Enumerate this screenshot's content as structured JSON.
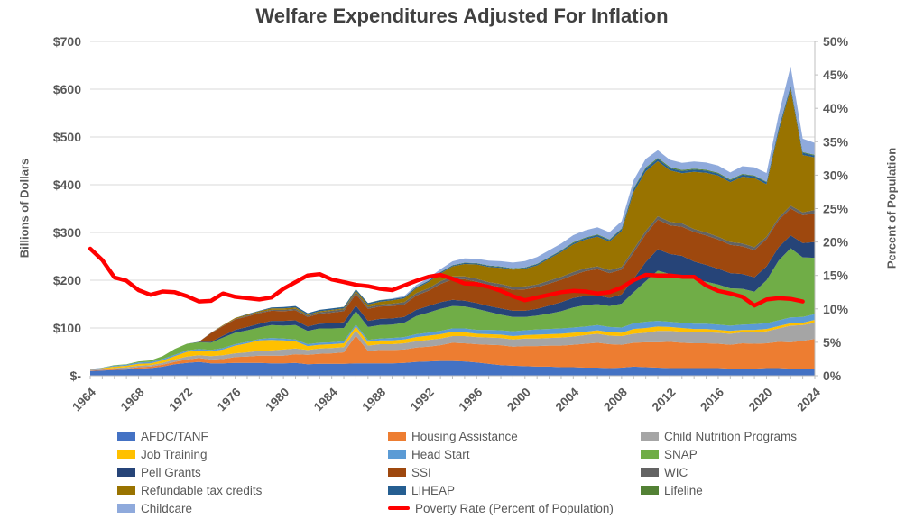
{
  "title": "Welfare Expenditures Adjusted For Inflation",
  "left_axis": {
    "title": "Billions of Dollars",
    "max": 700,
    "step": 100,
    "tick_labels": [
      "$-",
      "$100",
      "$200",
      "$300",
      "$400",
      "$500",
      "$600",
      "$700"
    ]
  },
  "right_axis": {
    "title": "Percent of Population",
    "max": 50,
    "step": 5,
    "tick_labels": [
      "0%",
      "5%",
      "10%",
      "15%",
      "20%",
      "25%",
      "30%",
      "35%",
      "40%",
      "45%",
      "50%"
    ]
  },
  "x_axis": {
    "labels": [
      1964,
      1968,
      1972,
      1976,
      1980,
      1984,
      1988,
      1992,
      1996,
      2000,
      2004,
      2008,
      2012,
      2016,
      2020,
      2024
    ]
  },
  "colors": {
    "grid": "#D9D9D9",
    "axis_line": "#BFBFBF",
    "tick_text": "#595959",
    "title_text": "#404040",
    "poverty_line": "#FF0000"
  },
  "chart_data": {
    "type": "area",
    "stacked": true,
    "grid": true,
    "legend_position": "bottom",
    "x": [
      1964,
      1965,
      1966,
      1967,
      1968,
      1969,
      1970,
      1971,
      1972,
      1973,
      1974,
      1975,
      1976,
      1977,
      1978,
      1979,
      1980,
      1981,
      1982,
      1983,
      1984,
      1985,
      1986,
      1987,
      1988,
      1989,
      1990,
      1991,
      1992,
      1993,
      1994,
      1995,
      1996,
      1997,
      1998,
      1999,
      2000,
      2001,
      2002,
      2003,
      2004,
      2005,
      2006,
      2007,
      2008,
      2009,
      2010,
      2011,
      2012,
      2013,
      2014,
      2015,
      2016,
      2017,
      2018,
      2019,
      2020,
      2021,
      2022,
      2023,
      2024
    ],
    "ylim_left": [
      0,
      700
    ],
    "ylim_right": [
      0,
      50
    ],
    "series": [
      {
        "name": "AFDC/TANF",
        "color": "#4472C4",
        "values": [
          10,
          11,
          12,
          13,
          15,
          16,
          19,
          24,
          27,
          29,
          26,
          26,
          27,
          27,
          27,
          26,
          26,
          27,
          24,
          25,
          25,
          25,
          26,
          26,
          26,
          26,
          27,
          29,
          30,
          31,
          31,
          30,
          28,
          25,
          22,
          21,
          20,
          19,
          19,
          18,
          18,
          17,
          17,
          16,
          17,
          19,
          18,
          17,
          16,
          16,
          16,
          16,
          16,
          15,
          15,
          15,
          16,
          16,
          15,
          15,
          15
        ]
      },
      {
        "name": "Housing Assistance",
        "color": "#ED7D31",
        "values": [
          1,
          1,
          2,
          2,
          3,
          3,
          4,
          5,
          7,
          8,
          8,
          9,
          12,
          13,
          15,
          16,
          16,
          18,
          20,
          21,
          22,
          24,
          58,
          26,
          28,
          28,
          28,
          30,
          31,
          33,
          38,
          38,
          38,
          40,
          42,
          40,
          42,
          43,
          44,
          45,
          47,
          50,
          52,
          50,
          48,
          50,
          52,
          53,
          55,
          53,
          52,
          52,
          51,
          50,
          53,
          52,
          52,
          55,
          55,
          58,
          62
        ]
      },
      {
        "name": "Child Nutrition Programs",
        "color": "#A5A5A5",
        "values": [
          2,
          2,
          2,
          3,
          3,
          3,
          4,
          5,
          6,
          6,
          7,
          8,
          8,
          9,
          10,
          11,
          13,
          12,
          10,
          11,
          11,
          11,
          11,
          11,
          12,
          12,
          13,
          13,
          14,
          14,
          14,
          15,
          15,
          15,
          15,
          15,
          16,
          16,
          16,
          17,
          17,
          18,
          19,
          18,
          18,
          19,
          20,
          24,
          23,
          23,
          23,
          23,
          23,
          23,
          23,
          24,
          25,
          28,
          35,
          33,
          34
        ]
      },
      {
        "name": "Job Training",
        "color": "#FFC000",
        "values": [
          1,
          2,
          3,
          3,
          4,
          4,
          5,
          7,
          10,
          10,
          10,
          12,
          16,
          19,
          22,
          22,
          19,
          15,
          8,
          8,
          8,
          8,
          8,
          8,
          8,
          8,
          8,
          9,
          9,
          9,
          9,
          8,
          7,
          7,
          7,
          7,
          7,
          8,
          8,
          8,
          8,
          7,
          7,
          7,
          7,
          10,
          10,
          9,
          8,
          8,
          7,
          7,
          6,
          6,
          5,
          5,
          5,
          5,
          5,
          5,
          6
        ]
      },
      {
        "name": "Head Start",
        "color": "#5B9BD5",
        "values": [
          0,
          1,
          2,
          2,
          3,
          3,
          3,
          3,
          3,
          3,
          3,
          3,
          3,
          3,
          3,
          4,
          4,
          4,
          4,
          4,
          4,
          4,
          4,
          4,
          4,
          5,
          5,
          6,
          6,
          7,
          7,
          8,
          8,
          9,
          9,
          10,
          10,
          11,
          11,
          11,
          11,
          11,
          11,
          11,
          11,
          12,
          13,
          12,
          11,
          11,
          11,
          11,
          11,
          11,
          11,
          12,
          12,
          12,
          12,
          12,
          12
        ]
      },
      {
        "name": "SNAP",
        "color": "#70AD47",
        "values": [
          0,
          0,
          1,
          1,
          2,
          3,
          6,
          12,
          14,
          14,
          15,
          22,
          24,
          24,
          24,
          27,
          27,
          30,
          28,
          30,
          29,
          28,
          28,
          27,
          28,
          28,
          30,
          38,
          42,
          46,
          47,
          46,
          44,
          38,
          33,
          30,
          28,
          29,
          32,
          36,
          42,
          45,
          44,
          44,
          50,
          65,
          85,
          105,
          100,
          100,
          93,
          88,
          84,
          78,
          75,
          68,
          90,
          125,
          145,
          125,
          118
        ]
      },
      {
        "name": "Pell Grants",
        "color": "#264478",
        "values": [
          0,
          0,
          0,
          0,
          0,
          0,
          0,
          0,
          0,
          1,
          2,
          4,
          6,
          7,
          8,
          9,
          10,
          10,
          9,
          10,
          11,
          12,
          12,
          13,
          13,
          13,
          12,
          13,
          14,
          14,
          13,
          12,
          12,
          12,
          13,
          13,
          13,
          14,
          17,
          19,
          20,
          19,
          18,
          17,
          19,
          28,
          40,
          45,
          42,
          40,
          37,
          35,
          33,
          32,
          31,
          30,
          29,
          28,
          27,
          30,
          33
        ]
      },
      {
        "name": "SSI",
        "color": "#9E480E",
        "values": [
          0,
          0,
          0,
          0,
          0,
          0,
          0,
          0,
          0,
          0,
          18,
          20,
          22,
          22,
          22,
          21,
          20,
          21,
          20,
          21,
          22,
          23,
          24,
          25,
          26,
          26,
          26,
          30,
          32,
          38,
          43,
          45,
          45,
          44,
          45,
          44,
          45,
          45,
          46,
          47,
          48,
          52,
          55,
          52,
          52,
          55,
          58,
          62,
          60,
          61,
          62,
          62,
          61,
          59,
          58,
          57,
          57,
          57,
          56,
          58,
          60
        ]
      },
      {
        "name": "WIC",
        "color": "#636363",
        "values": [
          0,
          0,
          0,
          0,
          0,
          0,
          0,
          0,
          0,
          0,
          1,
          1,
          1,
          2,
          2,
          2,
          3,
          3,
          3,
          3,
          4,
          4,
          4,
          4,
          4,
          5,
          5,
          5,
          5,
          6,
          6,
          6,
          6,
          6,
          6,
          6,
          6,
          6,
          6,
          6,
          6,
          6,
          6,
          6,
          6,
          7,
          7,
          7,
          7,
          7,
          6,
          6,
          6,
          6,
          6,
          6,
          5,
          5,
          6,
          6,
          7
        ]
      },
      {
        "name": "Refundable tax credits",
        "color": "#997300",
        "values": [
          0,
          0,
          0,
          0,
          0,
          0,
          0,
          0,
          0,
          0,
          0,
          1,
          2,
          2,
          2,
          3,
          3,
          3,
          2,
          2,
          2,
          2,
          3,
          5,
          6,
          7,
          8,
          10,
          13,
          16,
          21,
          26,
          30,
          32,
          34,
          36,
          37,
          40,
          46,
          52,
          58,
          60,
          62,
          60,
          75,
          120,
          125,
          115,
          108,
          105,
          120,
          125,
          128,
          125,
          140,
          145,
          110,
          180,
          245,
          120,
          110
        ]
      },
      {
        "name": "LIHEAP",
        "color": "#255E91",
        "values": [
          0,
          0,
          0,
          0,
          0,
          0,
          0,
          0,
          0,
          0,
          0,
          0,
          0,
          1,
          1,
          2,
          3,
          3,
          3,
          3,
          3,
          3,
          3,
          3,
          3,
          2.5,
          2.5,
          2.5,
          2.5,
          2.5,
          2,
          2,
          2,
          2,
          2,
          2,
          2,
          2.5,
          2.5,
          2.5,
          3,
          3,
          3.5,
          3,
          4,
          6,
          6,
          5,
          4.5,
          4.5,
          4.5,
          4.5,
          4.2,
          4,
          4,
          4,
          4,
          6,
          5,
          5,
          4
        ]
      },
      {
        "name": "Lifeline",
        "color": "#538135",
        "values": [
          0,
          0,
          0,
          0,
          0,
          0,
          0,
          0,
          0,
          0,
          0,
          0,
          0,
          0,
          0,
          0,
          0,
          0,
          0,
          0,
          0,
          0.3,
          0.3,
          0.4,
          0.4,
          0.4,
          0.5,
          0.5,
          0.6,
          0.6,
          0.7,
          0.8,
          0.8,
          0.9,
          0.9,
          1,
          1,
          1,
          1.2,
          1.3,
          1.4,
          1.5,
          1.5,
          1.5,
          1.5,
          1.8,
          2,
          2.2,
          2.5,
          2.4,
          2,
          1.9,
          1.8,
          1.7,
          1.6,
          1.5,
          1.5,
          1.5,
          1.5,
          1.5,
          1.5
        ]
      },
      {
        "name": "Childcare",
        "color": "#8FAADC",
        "values": [
          0,
          0,
          0,
          0,
          0,
          0,
          0,
          0,
          0,
          0,
          0,
          0,
          0,
          0,
          0,
          0,
          0,
          0,
          0,
          0,
          0,
          0,
          0,
          0,
          0,
          1,
          2,
          4,
          5,
          6,
          8,
          9,
          9,
          10,
          11,
          12,
          13,
          14,
          14,
          14,
          15,
          15,
          15,
          15,
          15,
          17,
          18,
          16,
          15,
          15,
          15,
          15,
          15,
          15,
          16,
          17,
          18,
          28,
          40,
          28,
          25
        ]
      }
    ],
    "line_series": {
      "name": "Poverty Rate (Percent of Population)",
      "color": "#FF0000",
      "axis": "right",
      "values": [
        19,
        17.3,
        14.7,
        14.2,
        12.8,
        12.1,
        12.6,
        12.5,
        11.9,
        11.1,
        11.2,
        12.3,
        11.8,
        11.6,
        11.4,
        11.7,
        13,
        14,
        15,
        15.2,
        14.4,
        14,
        13.6,
        13.4,
        13,
        12.8,
        13.5,
        14.2,
        14.8,
        15.1,
        14.5,
        13.8,
        13.7,
        13.3,
        12.7,
        11.9,
        11.3,
        11.7,
        12.1,
        12.5,
        12.7,
        12.6,
        12.3,
        12.5,
        13.2,
        14.3,
        15.1,
        15,
        15,
        14.8,
        14.8,
        13.5,
        12.7,
        12.3,
        11.8,
        10.5,
        11.4,
        11.6,
        11.5,
        11.1,
        null
      ]
    },
    "legend_columns": [
      [
        "AFDC/TANF",
        "Job Training",
        "Pell Grants",
        "Refundable tax credits",
        "Childcare"
      ],
      [
        "Housing Assistance",
        "Head Start",
        "SSI",
        "LIHEAP",
        "Poverty Rate (Percent of Population)"
      ],
      [
        "Child Nutrition Programs",
        "SNAP",
        "WIC",
        "Lifeline"
      ]
    ]
  }
}
